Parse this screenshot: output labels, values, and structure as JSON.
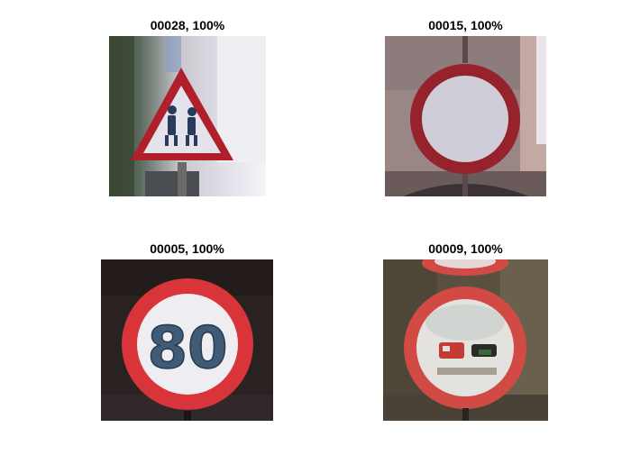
{
  "panels": [
    {
      "title": "00028, 100%"
    },
    {
      "title": "00015, 100%"
    },
    {
      "title": "00005, 100%"
    },
    {
      "title": "00009, 100%"
    }
  ],
  "signs": {
    "speed_limit_text": "80"
  },
  "colors": {
    "sign_red": "#b0202a",
    "sign_red_bright": "#d8343a",
    "sign_white": "#e8e8ee"
  }
}
